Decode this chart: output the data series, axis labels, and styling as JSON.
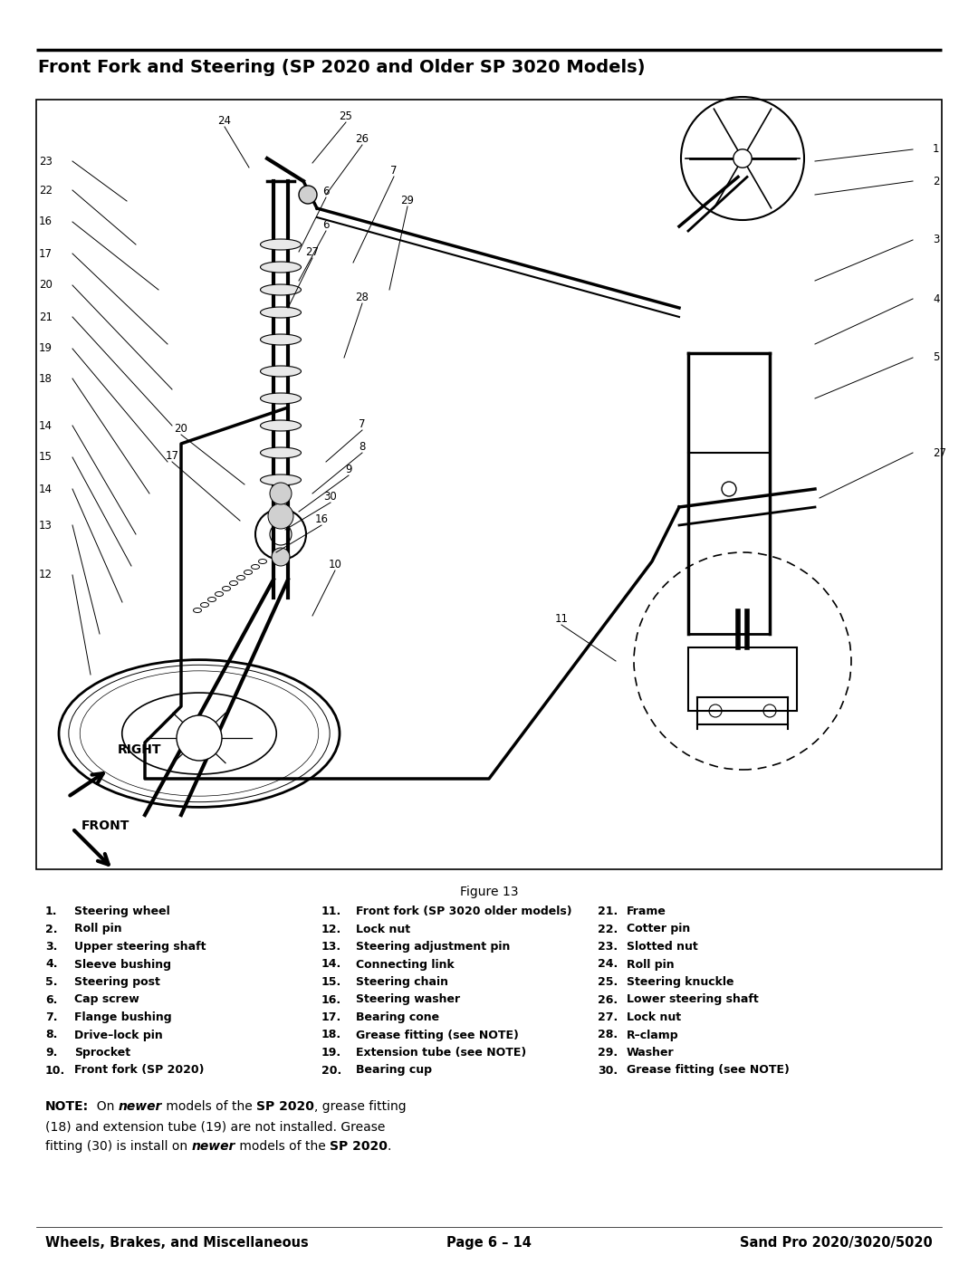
{
  "page_title": "Front Fork and Steering (SP 2020 and Older SP 3020 Models)",
  "figure_caption": "Figure 13",
  "bg_color": "#ffffff",
  "title_fontsize": 14,
  "body_fontsize": 9.0,
  "figure_label_fontsize": 10,
  "footer_fontsize": 10.5,
  "note_fontsize": 10,
  "parts_col1": [
    [
      "1.",
      "Steering wheel"
    ],
    [
      "2.",
      "Roll pin"
    ],
    [
      "3.",
      "Upper steering shaft"
    ],
    [
      "4.",
      "Sleeve bushing"
    ],
    [
      "5.",
      "Steering post"
    ],
    [
      "6.",
      "Cap screw"
    ],
    [
      "7.",
      "Flange bushing"
    ],
    [
      "8.",
      "Drive–lock pin"
    ],
    [
      "9.",
      "Sprocket"
    ],
    [
      "10.",
      "Front fork (SP 2020)"
    ]
  ],
  "parts_col2": [
    [
      "11.",
      "Front fork (SP 3020 older models)"
    ],
    [
      "12.",
      "Lock nut"
    ],
    [
      "13.",
      "Steering adjustment pin"
    ],
    [
      "14.",
      "Connecting link"
    ],
    [
      "15.",
      "Steering chain"
    ],
    [
      "16.",
      "Steering washer"
    ],
    [
      "17.",
      "Bearing cone"
    ],
    [
      "18.",
      "Grease fitting (see NOTE)"
    ],
    [
      "19.",
      "Extension tube (see NOTE)"
    ],
    [
      "20.",
      "Bearing cup"
    ]
  ],
  "parts_col3": [
    [
      "21.",
      "Frame"
    ],
    [
      "22.",
      "Cotter pin"
    ],
    [
      "23.",
      "Slotted nut"
    ],
    [
      "24.",
      "Roll pin"
    ],
    [
      "25.",
      "Steering knuckle"
    ],
    [
      "26.",
      "Lower steering shaft"
    ],
    [
      "27.",
      "Lock nut"
    ],
    [
      "28.",
      "R–clamp"
    ],
    [
      "29.",
      "Washer"
    ],
    [
      "30.",
      "Grease fitting (see NOTE)"
    ]
  ],
  "footer_left": "Wheels, Brakes, and Miscellaneous",
  "footer_center": "Page 6 – 14",
  "footer_right": "Sand Pro 2020/3020/5020"
}
